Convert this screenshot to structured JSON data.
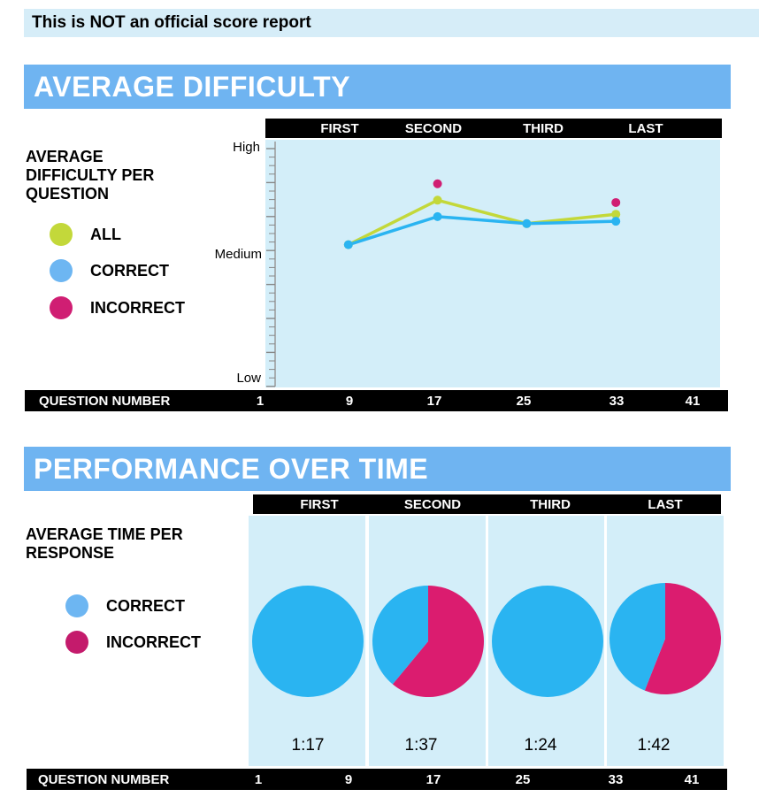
{
  "notice": "This is NOT an official score report",
  "difficulty": {
    "title": "AVERAGE DIFFICULTY",
    "side_title": "AVERAGE\nDIFFICULTY PER\nQUESTION",
    "quarters": [
      "FIRST",
      "SECOND",
      "THIRD",
      "LAST"
    ],
    "legend": [
      {
        "label": "ALL",
        "color": "#c3d83a"
      },
      {
        "label": "CORRECT",
        "color": "#6db6f2"
      },
      {
        "label": "INCORRECT",
        "color": "#d01e73"
      }
    ],
    "y_labels": {
      "high": "High",
      "medium": "Medium",
      "low": "Low"
    },
    "question_number_label": "QUESTION NUMBER",
    "question_numbers": [
      "1",
      "9",
      "17",
      "25",
      "33",
      "41"
    ]
  },
  "performance": {
    "title": "PERFORMANCE OVER TIME",
    "side_title": "AVERAGE TIME PER\nRESPONSE",
    "quarters": [
      "FIRST",
      "SECOND",
      "THIRD",
      "LAST"
    ],
    "legend": [
      {
        "label": "CORRECT",
        "color": "#6db6f2"
      },
      {
        "label": "INCORRECT",
        "color": "#c41b6c"
      }
    ],
    "times": [
      "1:17",
      "1:37",
      "1:24",
      "1:42"
    ],
    "question_number_label": "QUESTION NUMBER",
    "question_numbers": [
      "1",
      "9",
      "17",
      "25",
      "33",
      "41"
    ]
  },
  "chart_data": [
    {
      "type": "line",
      "title": "AVERAGE DIFFICULTY",
      "ylabel": "AVERAGE DIFFICULTY PER QUESTION",
      "xlabel": "QUESTION NUMBER",
      "x": [
        9,
        17,
        25,
        33
      ],
      "ylim": [
        0,
        1
      ],
      "y_tick_labels": [
        "Low",
        "Medium",
        "High"
      ],
      "series": [
        {
          "name": "ALL",
          "color": "#c3d83a",
          "values": [
            0.59,
            0.78,
            0.68,
            0.72
          ]
        },
        {
          "name": "CORRECT",
          "color": "#2ab4f1",
          "values": [
            0.59,
            0.71,
            0.68,
            0.69
          ]
        },
        {
          "name": "INCORRECT",
          "color": "#d01e73",
          "values": [
            null,
            0.85,
            null,
            0.77
          ]
        }
      ],
      "legend": "left"
    },
    {
      "type": "pie",
      "title": "PERFORMANCE OVER TIME",
      "categories": [
        "FIRST",
        "SECOND",
        "THIRD",
        "LAST"
      ],
      "series": [
        {
          "name": "CORRECT",
          "color": "#2ab4f1",
          "values": [
            1.0,
            0.39,
            1.0,
            0.44
          ]
        },
        {
          "name": "INCORRECT",
          "color": "#db1c6f",
          "values": [
            0.0,
            0.61,
            0.0,
            0.56
          ]
        }
      ],
      "labels": [
        "1:17",
        "1:37",
        "1:24",
        "1:42"
      ]
    }
  ]
}
